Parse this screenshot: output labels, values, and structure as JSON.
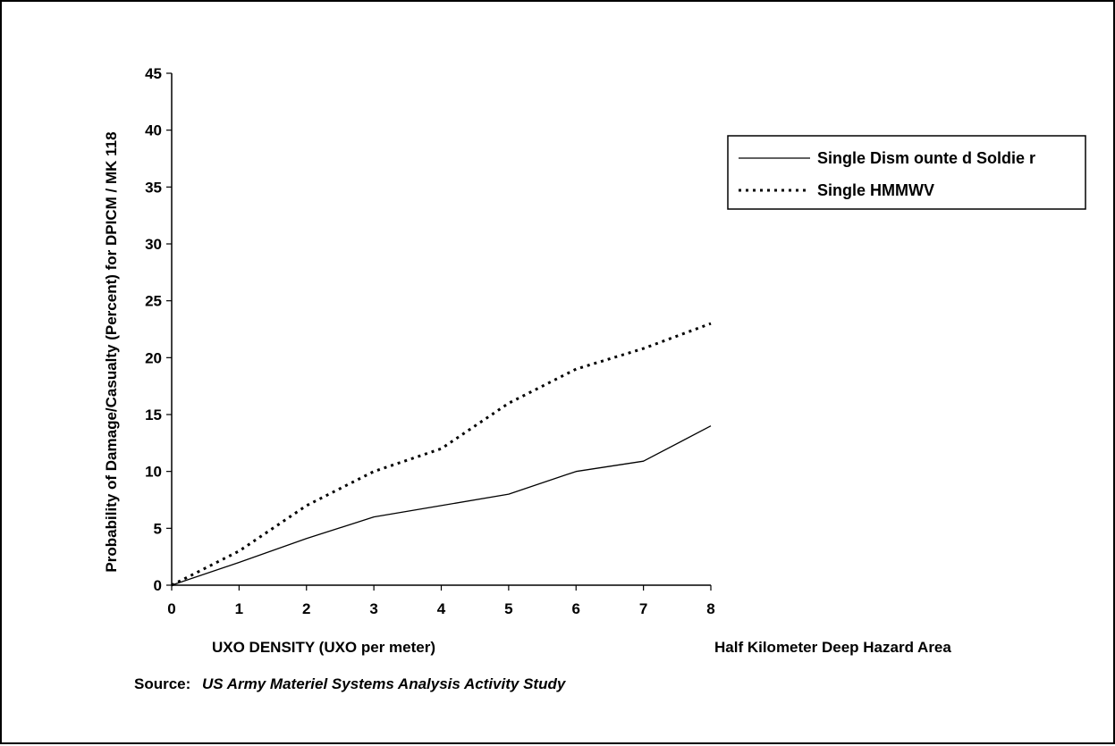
{
  "chart_data": {
    "type": "line",
    "title": "",
    "xlabel": "UXO DENSITY (UXO per meter)",
    "ylabel": "Probability of Damage/Casualty (Percent) for DPICM / MK 118",
    "xlim": [
      0,
      8
    ],
    "ylim": [
      0,
      45
    ],
    "x_ticks": [
      0,
      1,
      2,
      3,
      4,
      5,
      6,
      7,
      8
    ],
    "y_ticks": [
      0,
      5,
      10,
      15,
      20,
      25,
      30,
      35,
      40,
      45
    ],
    "grid": false,
    "legend_position": "right",
    "series": [
      {
        "name": "Single Dism ounte d Soldie r",
        "style": "solid",
        "x": [
          0,
          1,
          2,
          3,
          4,
          5,
          6,
          7,
          8
        ],
        "values": [
          0,
          2,
          4.1,
          6,
          7,
          8,
          10,
          10.9,
          14
        ]
      },
      {
        "name": "Single HMMWV",
        "style": "dotted",
        "x": [
          0,
          1,
          2,
          3,
          4,
          5,
          6,
          7,
          8
        ],
        "values": [
          0,
          3,
          7,
          10,
          12,
          16,
          19,
          20.8,
          23
        ]
      }
    ],
    "annotations": {
      "right_note": "Half Kilometer Deep Hazard Area",
      "source_label": "Source:",
      "source_text": "US Army Materiel Systems Analysis Activity Study"
    }
  },
  "colors": {
    "line": "#000000",
    "background": "#ffffff"
  }
}
